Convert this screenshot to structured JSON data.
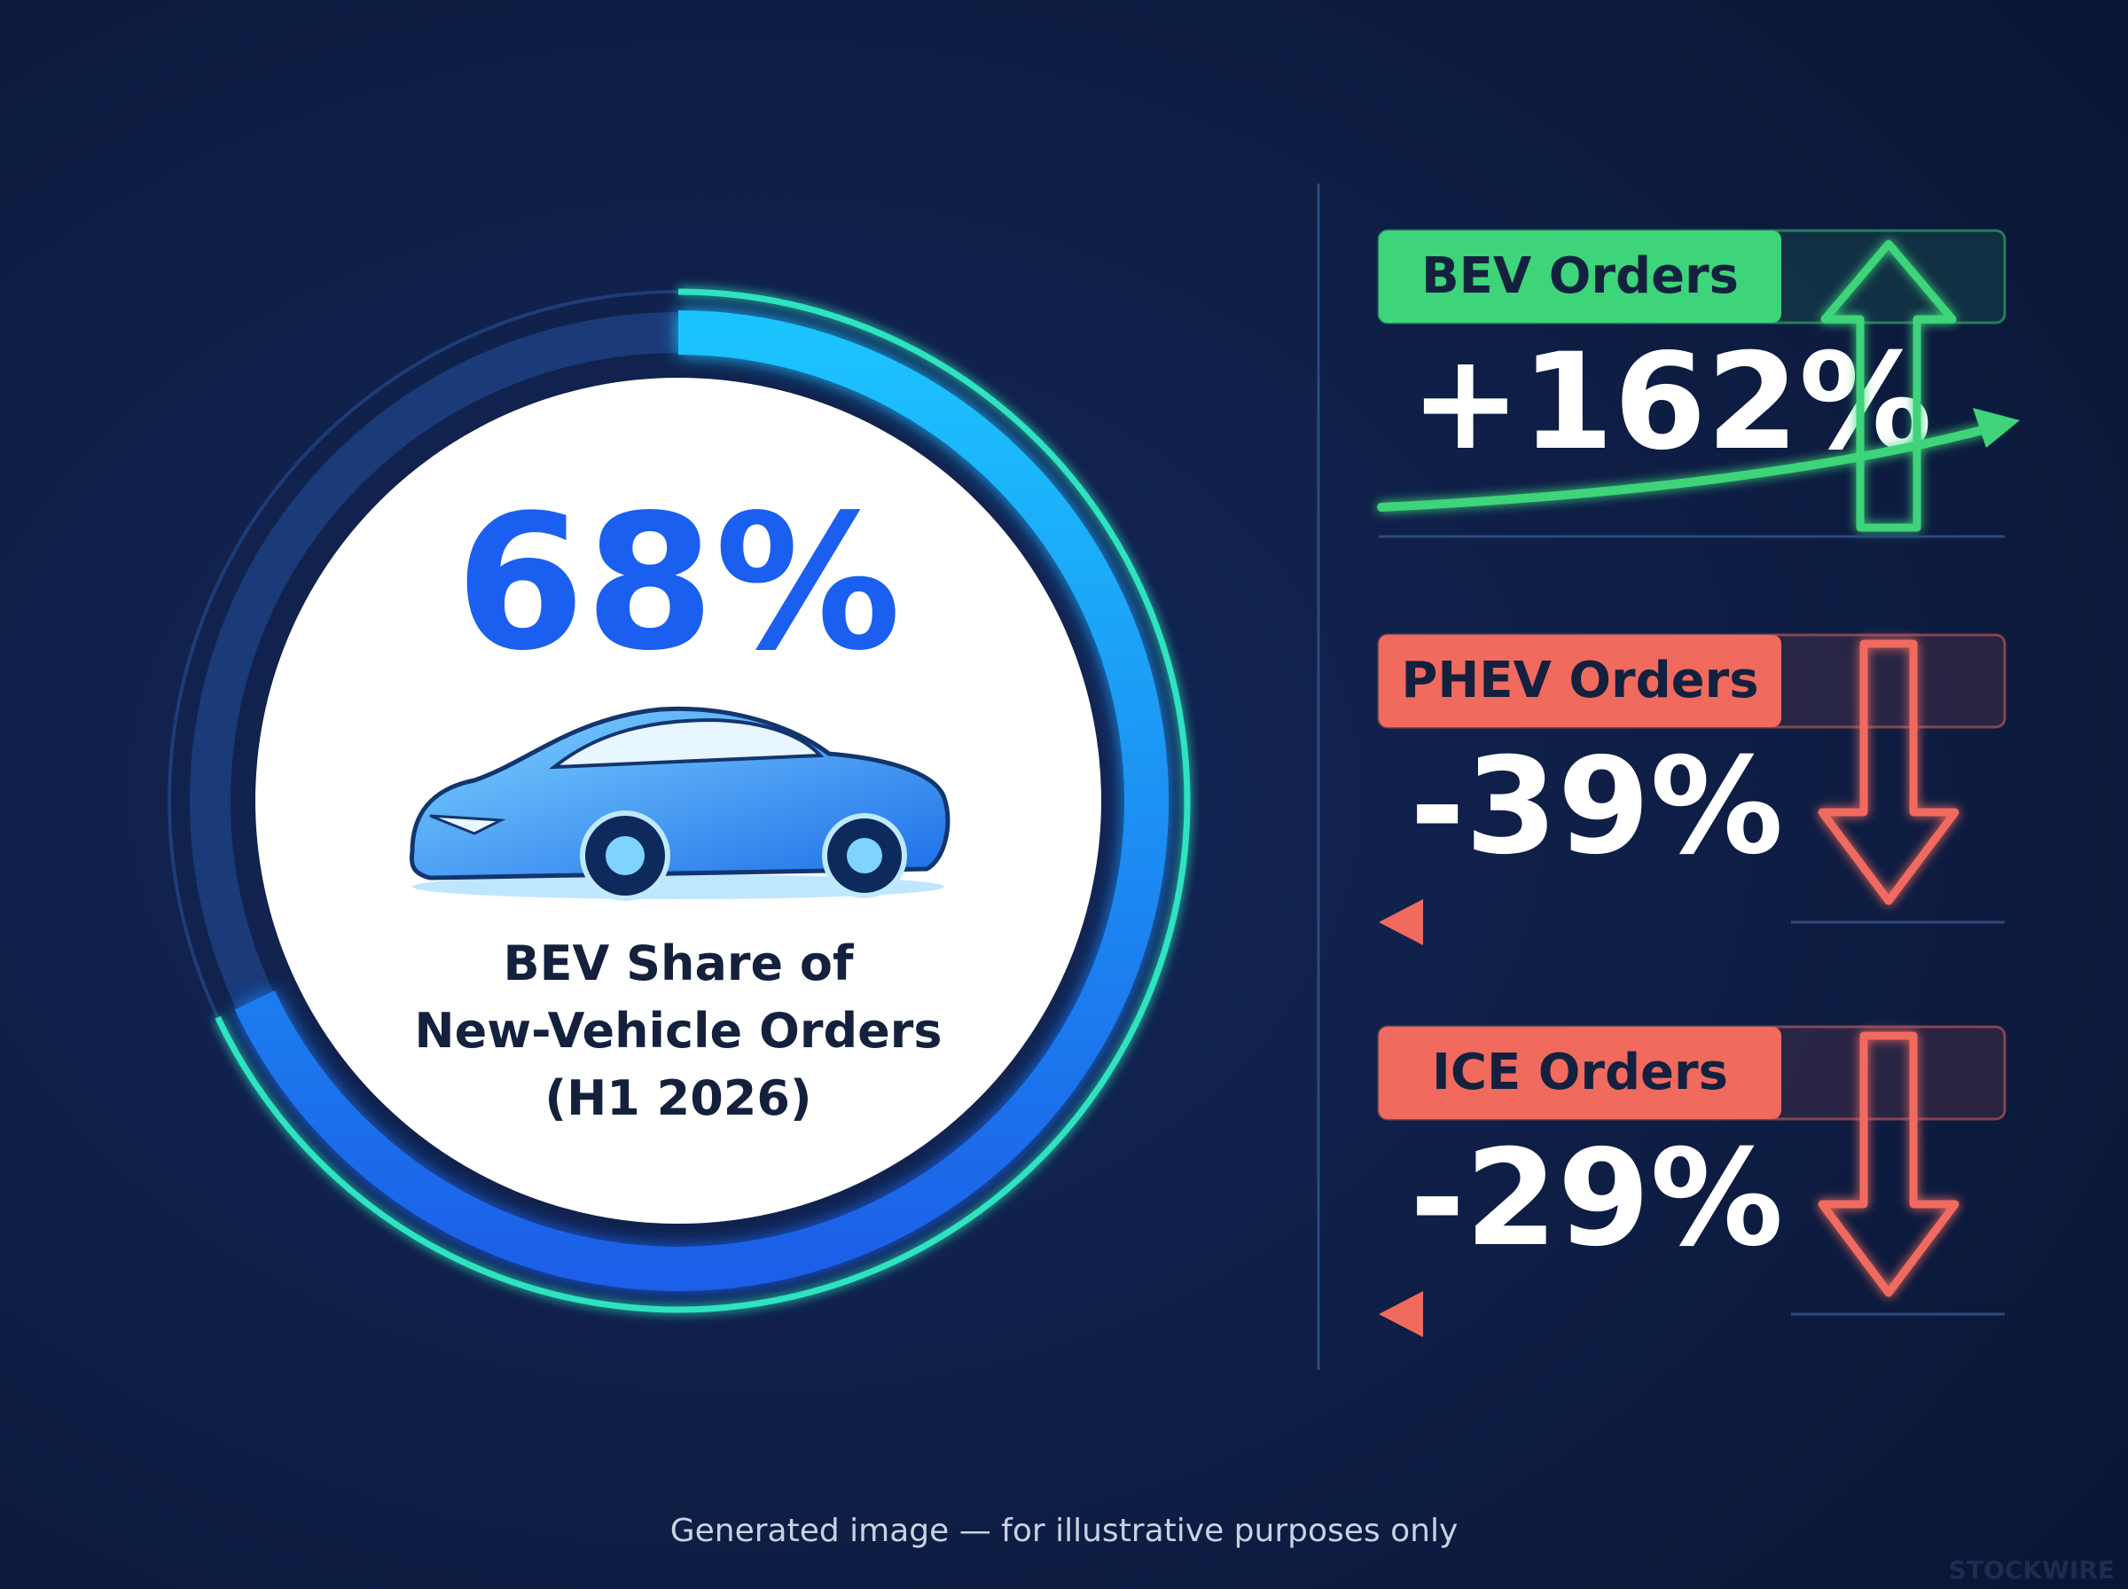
{
  "share": {
    "value": 68,
    "max": 100,
    "value_label": "68%",
    "caption": [
      "BEV Share of",
      "New-Vehicle Orders",
      "(H1 2026)"
    ]
  },
  "metrics": [
    {
      "label": "BEV Orders",
      "change": "+162%",
      "direction": "up",
      "color": "#3dd47a"
    },
    {
      "label": "PHEV Orders",
      "change": "-39%",
      "direction": "down",
      "color": "#f06a5e"
    },
    {
      "label": "ICE Orders",
      "change": "-29%",
      "direction": "down",
      "color": "#f06a5e"
    }
  ],
  "footer": "Generated image — for illustrative purposes only",
  "watermark": "STOCKWIRE"
}
